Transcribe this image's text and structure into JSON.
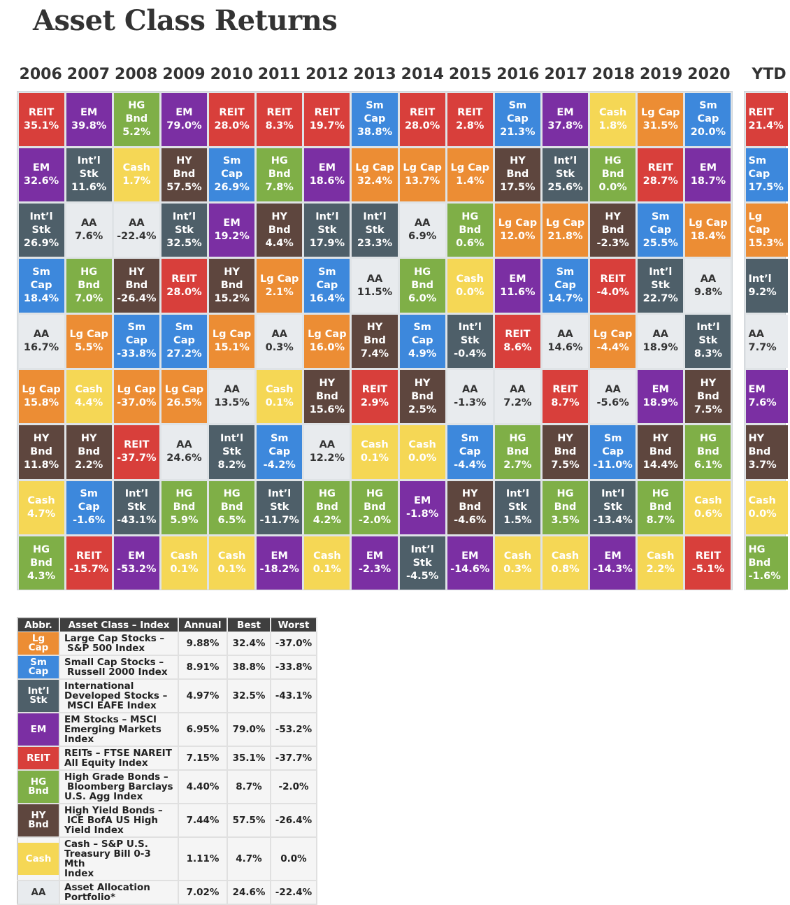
{
  "page": {
    "title": "Asset Class Returns"
  },
  "colors": {
    "REIT": "#d83f3b",
    "EM": "#7b2fa3",
    "HG Bnd": "#7faf47",
    "Sm Cap": "#3d88dc",
    "Lg Cap": "#ec8d34",
    "Int'l Stk": "#4e5f69",
    "HY Bnd": "#5e463e",
    "Cash": "#f5d755",
    "AA": "#e8ebee"
  },
  "labels": {
    "REIT": [
      "REIT"
    ],
    "EM": [
      "EM"
    ],
    "HG Bnd": [
      "HG",
      "Bnd"
    ],
    "Sm Cap": [
      "Sm",
      "Cap"
    ],
    "Lg Cap": [
      "Lg Cap"
    ],
    "Int'l Stk": [
      "Int’l",
      "Stk"
    ],
    "HY Bnd": [
      "HY",
      "Bnd"
    ],
    "Cash": [
      "Cash"
    ],
    "AA": [
      "AA"
    ]
  },
  "chart_data": {
    "type": "table",
    "title": "Asset Class Returns",
    "years": [
      "2006",
      "2007",
      "2008",
      "2009",
      "2010",
      "2011",
      "2012",
      "2013",
      "2014",
      "2015",
      "2016",
      "2017",
      "2018",
      "2019",
      "2020"
    ],
    "ytd_label": "YTD",
    "columns": [
      [
        [
          "REIT",
          "35.1%"
        ],
        [
          "EM",
          "32.6%"
        ],
        [
          "Int'l Stk",
          "26.9%"
        ],
        [
          "Sm Cap",
          "18.4%"
        ],
        [
          "AA",
          "16.7%"
        ],
        [
          "Lg Cap",
          "15.8%"
        ],
        [
          "HY Bnd",
          "11.8%"
        ],
        [
          "Cash",
          "4.7%"
        ],
        [
          "HG Bnd",
          "4.3%"
        ]
      ],
      [
        [
          "EM",
          "39.8%"
        ],
        [
          "Int'l Stk",
          "11.6%"
        ],
        [
          "AA",
          "7.6%"
        ],
        [
          "HG Bnd",
          "7.0%"
        ],
        [
          "Lg Cap",
          "5.5%"
        ],
        [
          "Cash",
          "4.4%"
        ],
        [
          "HY Bnd",
          "2.2%"
        ],
        [
          "Sm Cap",
          "-1.6%"
        ],
        [
          "REIT",
          "-15.7%"
        ]
      ],
      [
        [
          "HG Bnd",
          "5.2%"
        ],
        [
          "Cash",
          "1.7%"
        ],
        [
          "AA",
          "-22.4%"
        ],
        [
          "HY Bnd",
          "-26.4%"
        ],
        [
          "Sm Cap",
          "-33.8%"
        ],
        [
          "Lg Cap",
          "-37.0%"
        ],
        [
          "REIT",
          "-37.7%"
        ],
        [
          "Int'l Stk",
          "-43.1%"
        ],
        [
          "EM",
          "-53.2%"
        ]
      ],
      [
        [
          "EM",
          "79.0%"
        ],
        [
          "HY Bnd",
          "57.5%"
        ],
        [
          "Int'l Stk",
          "32.5%"
        ],
        [
          "REIT",
          "28.0%"
        ],
        [
          "Sm Cap",
          "27.2%"
        ],
        [
          "Lg Cap",
          "26.5%"
        ],
        [
          "AA",
          "24.6%"
        ],
        [
          "HG Bnd",
          "5.9%"
        ],
        [
          "Cash",
          "0.1%"
        ]
      ],
      [
        [
          "REIT",
          "28.0%"
        ],
        [
          "Sm Cap",
          "26.9%"
        ],
        [
          "EM",
          "19.2%"
        ],
        [
          "HY Bnd",
          "15.2%"
        ],
        [
          "Lg Cap",
          "15.1%"
        ],
        [
          "AA",
          "13.5%"
        ],
        [
          "Int'l Stk",
          "8.2%"
        ],
        [
          "HG Bnd",
          "6.5%"
        ],
        [
          "Cash",
          "0.1%"
        ]
      ],
      [
        [
          "REIT",
          "8.3%"
        ],
        [
          "HG Bnd",
          "7.8%"
        ],
        [
          "HY Bnd",
          "4.4%"
        ],
        [
          "Lg Cap",
          "2.1%"
        ],
        [
          "AA",
          "0.3%"
        ],
        [
          "Cash",
          "0.1%"
        ],
        [
          "Sm Cap",
          "-4.2%"
        ],
        [
          "Int'l Stk",
          "-11.7%"
        ],
        [
          "EM",
          "-18.2%"
        ]
      ],
      [
        [
          "REIT",
          "19.7%"
        ],
        [
          "EM",
          "18.6%"
        ],
        [
          "Int'l Stk",
          "17.9%"
        ],
        [
          "Sm Cap",
          "16.4%"
        ],
        [
          "Lg Cap",
          "16.0%"
        ],
        [
          "HY Bnd",
          "15.6%"
        ],
        [
          "AA",
          "12.2%"
        ],
        [
          "HG Bnd",
          "4.2%"
        ],
        [
          "Cash",
          "0.1%"
        ]
      ],
      [
        [
          "Sm Cap",
          "38.8%"
        ],
        [
          "Lg Cap",
          "32.4%"
        ],
        [
          "Int'l Stk",
          "23.3%"
        ],
        [
          "AA",
          "11.5%"
        ],
        [
          "HY Bnd",
          "7.4%"
        ],
        [
          "REIT",
          "2.9%"
        ],
        [
          "Cash",
          "0.1%"
        ],
        [
          "HG Bnd",
          "-2.0%"
        ],
        [
          "EM",
          "-2.3%"
        ]
      ],
      [
        [
          "REIT",
          "28.0%"
        ],
        [
          "Lg Cap",
          "13.7%"
        ],
        [
          "AA",
          "6.9%"
        ],
        [
          "HG Bnd",
          "6.0%"
        ],
        [
          "Sm Cap",
          "4.9%"
        ],
        [
          "HY Bnd",
          "2.5%"
        ],
        [
          "Cash",
          "0.0%"
        ],
        [
          "EM",
          "-1.8%"
        ],
        [
          "Int'l Stk",
          "-4.5%"
        ]
      ],
      [
        [
          "REIT",
          "2.8%"
        ],
        [
          "Lg Cap",
          "1.4%"
        ],
        [
          "HG Bnd",
          "0.6%"
        ],
        [
          "Cash",
          "0.0%"
        ],
        [
          "Int'l Stk",
          "-0.4%"
        ],
        [
          "AA",
          "-1.3%"
        ],
        [
          "Sm Cap",
          "-4.4%"
        ],
        [
          "HY Bnd",
          "-4.6%"
        ],
        [
          "EM",
          "-14.6%"
        ]
      ],
      [
        [
          "Sm Cap",
          "21.3%"
        ],
        [
          "HY Bnd",
          "17.5%"
        ],
        [
          "Lg Cap",
          "12.0%"
        ],
        [
          "EM",
          "11.6%"
        ],
        [
          "REIT",
          "8.6%"
        ],
        [
          "AA",
          "7.2%"
        ],
        [
          "HG Bnd",
          "2.7%"
        ],
        [
          "Int'l Stk",
          "1.5%"
        ],
        [
          "Cash",
          "0.3%"
        ]
      ],
      [
        [
          "EM",
          "37.8%"
        ],
        [
          "Int'l Stk",
          "25.6%"
        ],
        [
          "Lg Cap",
          "21.8%"
        ],
        [
          "Sm Cap",
          "14.7%"
        ],
        [
          "AA",
          "14.6%"
        ],
        [
          "REIT",
          "8.7%"
        ],
        [
          "HY Bnd",
          "7.5%"
        ],
        [
          "HG Bnd",
          "3.5%"
        ],
        [
          "Cash",
          "0.8%"
        ]
      ],
      [
        [
          "Cash",
          "1.8%"
        ],
        [
          "HG Bnd",
          "0.0%"
        ],
        [
          "HY Bnd",
          "-2.3%"
        ],
        [
          "REIT",
          "-4.0%"
        ],
        [
          "Lg Cap",
          "-4.4%"
        ],
        [
          "AA",
          "-5.6%"
        ],
        [
          "Sm Cap",
          "-11.0%"
        ],
        [
          "Int'l Stk",
          "-13.4%"
        ],
        [
          "EM",
          "-14.3%"
        ]
      ],
      [
        [
          "Lg Cap",
          "31.5%"
        ],
        [
          "REIT",
          "28.7%"
        ],
        [
          "Sm Cap",
          "25.5%"
        ],
        [
          "Int'l Stk",
          "22.7%"
        ],
        [
          "AA",
          "18.9%"
        ],
        [
          "EM",
          "18.9%"
        ],
        [
          "HY Bnd",
          "14.4%"
        ],
        [
          "HG Bnd",
          "8.7%"
        ],
        [
          "Cash",
          "2.2%"
        ]
      ],
      [
        [
          "Sm Cap",
          "20.0%"
        ],
        [
          "EM",
          "18.7%"
        ],
        [
          "Lg Cap",
          "18.4%"
        ],
        [
          "AA",
          "9.8%"
        ],
        [
          "Int'l Stk",
          "8.3%"
        ],
        [
          "HY Bnd",
          "7.5%"
        ],
        [
          "HG Bnd",
          "6.1%"
        ],
        [
          "Cash",
          "0.6%"
        ],
        [
          "REIT",
          "-5.1%"
        ]
      ]
    ],
    "ytd_column": [
      [
        "REIT",
        "21.4%"
      ],
      [
        "Sm Cap",
        "17.5%"
      ],
      [
        "Lg Cap",
        "15.3%"
      ],
      [
        "Int'l Stk",
        "9.2%"
      ],
      [
        "AA",
        "7.7%"
      ],
      [
        "EM",
        "7.6%"
      ],
      [
        "HY Bnd",
        "3.7%"
      ],
      [
        "Cash",
        "0.0%"
      ],
      [
        "HG Bnd",
        "-1.6%"
      ]
    ]
  },
  "ytd_display": [
    [
      "REIT",
      "21.4%"
    ],
    [
      "Sm",
      "Cap",
      "17.5%"
    ],
    [
      "Lg",
      "Cap",
      "15.3%"
    ],
    [
      "Int’l",
      "9.2%"
    ],
    [
      "AA",
      "7.7%"
    ],
    [
      "EM",
      "7.6%"
    ],
    [
      "HY",
      "Bnd",
      "3.7%"
    ],
    [
      "Cash",
      "0.0%"
    ],
    [
      "HG",
      "Bnd",
      "-1.6%"
    ]
  ],
  "legend": {
    "headers": [
      "Abbr.",
      "Asset Class – Index",
      "Annual",
      "Best",
      "Worst"
    ],
    "rows": [
      {
        "key": "Lg Cap",
        "abbr": [
          "Lg",
          "Cap"
        ],
        "desc": [
          "Large Cap Stocks –",
          "S&P 500 Index"
        ],
        "annual": "9.88%",
        "best": "32.4%",
        "worst": "-37.0%",
        "h": 34
      },
      {
        "key": "Sm Cap",
        "abbr": [
          "Sm",
          "Cap"
        ],
        "desc": [
          "Small Cap Stocks –",
          "Russell 2000 Index"
        ],
        "annual": "8.91%",
        "best": "38.8%",
        "worst": "-33.8%",
        "h": 34
      },
      {
        "key": "Int'l Stk",
        "abbr": [
          "Int’l",
          "Stk"
        ],
        "desc": [
          "International",
          "Developed Stocks –",
          "MSCI EAFE Index"
        ],
        "annual": "4.97%",
        "best": "32.5%",
        "worst": "-43.1%",
        "h": 48
      },
      {
        "key": "EM",
        "abbr": [
          "EM"
        ],
        "desc": [
          "EM Stocks – MSCI",
          "Emerging Markets",
          "Index"
        ],
        "annual": "6.95%",
        "best": "79.0%",
        "worst": "-53.2%",
        "h": 48
      },
      {
        "key": "REIT",
        "abbr": [
          "REIT"
        ],
        "desc": [
          "REITs – FTSE NAREIT",
          "All Equity Index"
        ],
        "annual": "7.15%",
        "best": "35.1%",
        "worst": "-37.7%",
        "h": 34
      },
      {
        "key": "HG Bnd",
        "abbr": [
          "HG",
          "Bnd"
        ],
        "desc": [
          "High Grade Bonds –",
          "Bloomberg Barclays",
          "U.S. Agg Index"
        ],
        "annual": "4.40%",
        "best": "8.7%",
        "worst": "-2.0%",
        "h": 48
      },
      {
        "key": "HY Bnd",
        "abbr": [
          "HY",
          "Bnd"
        ],
        "desc": [
          "High Yield Bonds –",
          "ICE BofA US High",
          "Yield Index"
        ],
        "annual": "7.44%",
        "best": "57.5%",
        "worst": "-26.4%",
        "h": 48
      },
      {
        "key": "Cash",
        "abbr": [
          "Cash"
        ],
        "desc": [
          "Cash – S&P U.S.",
          "Treasury Bill 0-3 Mth",
          "Index"
        ],
        "annual": "1.11%",
        "best": "4.7%",
        "worst": "0.0%",
        "h": 48
      },
      {
        "key": "AA",
        "abbr": [
          "AA"
        ],
        "desc": [
          "Asset Allocation",
          "Portfolio*"
        ],
        "annual": "7.02%",
        "best": "24.6%",
        "worst": "-22.4%",
        "h": 34
      }
    ]
  }
}
